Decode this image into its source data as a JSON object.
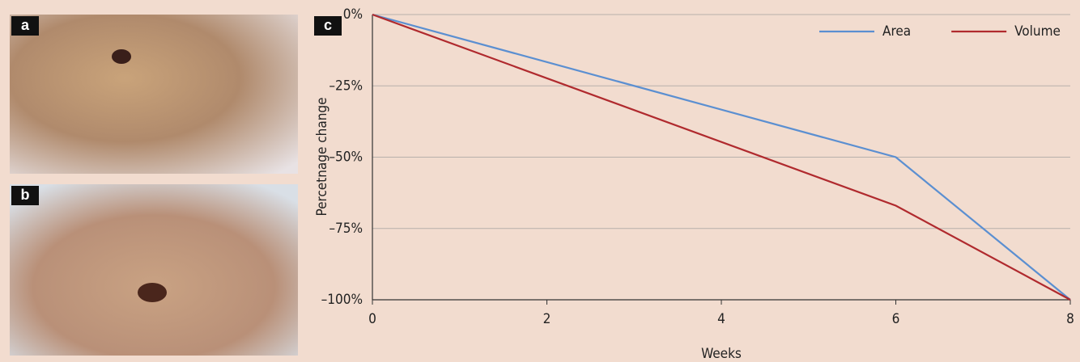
{
  "panel_labels": [
    "a",
    "b",
    "c"
  ],
  "chart_data": {
    "type": "line",
    "x": [
      0,
      6,
      8
    ],
    "series": [
      {
        "name": "Area",
        "color": "#5b8fd1",
        "values": [
          0,
          -50,
          -100
        ]
      },
      {
        "name": "Volume",
        "color": "#b02a2e",
        "values": [
          0,
          -67,
          -100
        ]
      }
    ],
    "xlabel": "Weeks",
    "ylabel": "Percetnage change",
    "xlim": [
      0,
      8
    ],
    "xticks": [
      0,
      2,
      4,
      6,
      8
    ],
    "ylim": [
      -100,
      0
    ],
    "yticks": [
      {
        "value": 0,
        "label": "0%"
      },
      {
        "value": -25,
        "label": "–25%"
      },
      {
        "value": -50,
        "label": "–50%"
      },
      {
        "value": -75,
        "label": "–75%"
      },
      {
        "value": -100,
        "label": "–100%"
      }
    ],
    "grid": true,
    "legend": "upper right"
  }
}
